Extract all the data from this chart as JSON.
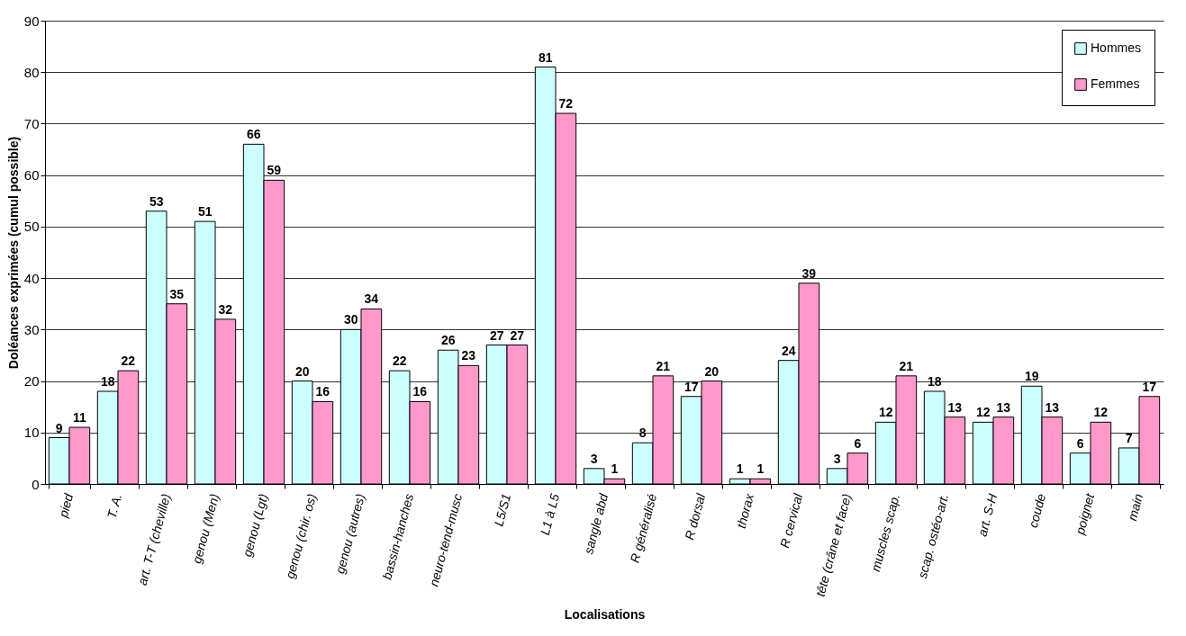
{
  "chart_data": {
    "type": "bar",
    "xlabel": "Localisations",
    "ylabel": "Doléances exprimées (cumul possible)",
    "categories": [
      "pied",
      "T. A.",
      "art. T-T (cheville)",
      "genou (Men)",
      "genou (Lgt)",
      "genou (chir. os)",
      "genou (autres)",
      "bassin-hanches",
      "neuro-tend-musc",
      "L5/S1",
      "L1 à L5",
      "sangle abd",
      "R généralisé",
      "R dorsal",
      "thorax",
      "R cervical",
      "tête (crâne et face)",
      "muscles scap.",
      "scap. ostéo-art.",
      "art. S-H",
      "coude",
      "poignet",
      "main"
    ],
    "series": [
      {
        "name": "Hommes",
        "color": "#ccffff",
        "values": [
          9,
          18,
          53,
          51,
          66,
          20,
          30,
          22,
          26,
          27,
          81,
          3,
          8,
          17,
          1,
          24,
          3,
          12,
          18,
          12,
          19,
          6,
          7
        ]
      },
      {
        "name": "Femmes",
        "color": "#ff99cc",
        "values": [
          11,
          22,
          35,
          32,
          59,
          16,
          34,
          16,
          23,
          27,
          72,
          1,
          21,
          20,
          1,
          39,
          6,
          21,
          13,
          13,
          13,
          12,
          17
        ]
      }
    ],
    "ylim": [
      0,
      90
    ],
    "yticks": [
      0,
      10,
      20,
      30,
      40,
      50,
      60,
      70,
      80,
      90
    ],
    "grid": "y",
    "legend": "top right",
    "data_labels": true
  }
}
